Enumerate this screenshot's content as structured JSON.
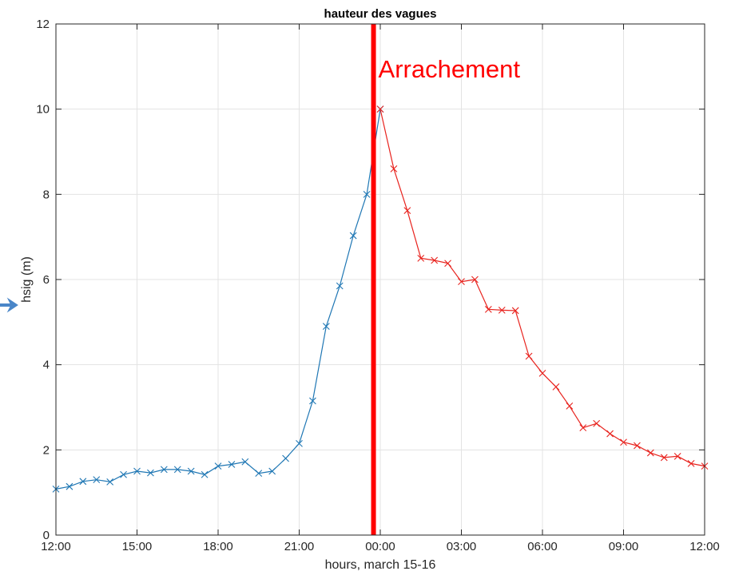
{
  "chart_data": {
    "type": "line",
    "title": "hauteur des vagues",
    "xlabel": "hours, march 15-16",
    "ylabel": "hsig (m)",
    "xlim": [
      0,
      24
    ],
    "ylim": [
      0,
      12
    ],
    "x_ticks": [
      0,
      3,
      6,
      9,
      12,
      15,
      18,
      21,
      24
    ],
    "x_tick_labels": [
      "12:00",
      "15:00",
      "18:00",
      "21:00",
      "00:00",
      "03:00",
      "06:00",
      "09:00",
      "12:00"
    ],
    "y_ticks": [
      0,
      2,
      4,
      6,
      8,
      10,
      12
    ],
    "y_tick_labels": [
      "0",
      "2",
      "4",
      "6",
      "8",
      "10",
      "12"
    ],
    "grid": true,
    "marker": "x",
    "series": [
      {
        "color": "#1f77b4",
        "x": [
          0,
          0.5,
          1,
          1.5,
          2,
          2.5,
          3,
          3.5,
          4,
          4.5,
          5,
          5.5,
          6,
          6.5,
          7,
          7.5,
          8,
          8.5,
          9,
          9.5,
          10,
          10.5,
          11,
          11.5,
          12
        ],
        "y": [
          1.08,
          1.14,
          1.26,
          1.3,
          1.25,
          1.42,
          1.5,
          1.46,
          1.54,
          1.54,
          1.5,
          1.42,
          1.62,
          1.66,
          1.72,
          1.45,
          1.5,
          1.8,
          2.15,
          3.15,
          4.9,
          5.85,
          7.03,
          8.0,
          10.0
        ]
      },
      {
        "color": "#e8231e",
        "x": [
          12,
          12.5,
          13,
          13.5,
          14,
          14.5,
          15,
          15.5,
          16,
          16.5,
          17,
          17.5,
          18,
          18.5,
          19,
          19.5,
          20,
          20.5,
          21,
          21.5,
          22,
          22.5,
          23,
          23.5,
          24
        ],
        "y": [
          10.0,
          8.6,
          7.62,
          6.5,
          6.45,
          6.38,
          5.95,
          6.0,
          5.3,
          5.28,
          5.27,
          4.2,
          3.8,
          3.48,
          3.03,
          2.52,
          2.62,
          2.38,
          2.18,
          2.1,
          1.93,
          1.82,
          1.85,
          1.68,
          1.62
        ]
      }
    ],
    "annotation": {
      "text": "Arrachement",
      "x": 11.75,
      "color": "#ff0000"
    }
  },
  "page": {
    "arrow_icon": "arrow-right-icon",
    "arrow_color": "#4a86c8"
  }
}
